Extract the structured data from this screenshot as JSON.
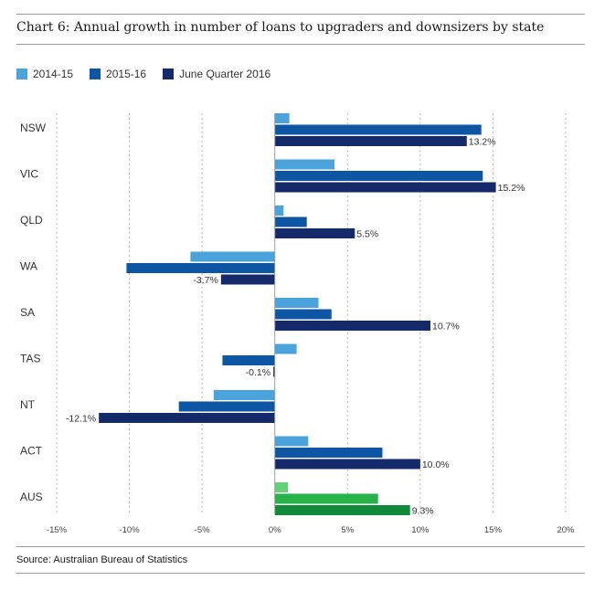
{
  "title": "Chart 6: Annual growth in number of loans to upgraders and downsizers by state",
  "source": "Source: Australian Bureau of Statistics",
  "chart_data": {
    "type": "bar",
    "orientation": "horizontal",
    "title": "Chart 6: Annual growth in number of loans to upgraders and downsizers by state",
    "categories": [
      "NSW",
      "VIC",
      "QLD",
      "WA",
      "SA",
      "TAS",
      "NT",
      "ACT",
      "AUS"
    ],
    "series": [
      {
        "name": "2014-15",
        "color": "#4ba3dc",
        "values": [
          1.0,
          4.1,
          0.6,
          -5.8,
          3.0,
          1.5,
          -4.2,
          2.3,
          0.9
        ]
      },
      {
        "name": "2015-16",
        "color": "#0c56a4",
        "values": [
          14.2,
          14.3,
          2.2,
          -10.2,
          3.9,
          -3.6,
          -6.6,
          7.4,
          7.1
        ]
      },
      {
        "name": "June Quarter 2016",
        "color": "#152a6b",
        "values": [
          13.2,
          15.2,
          5.5,
          -3.7,
          10.7,
          -0.1,
          -12.1,
          10.0,
          9.3
        ]
      }
    ],
    "aus_colors": [
      "#5fd27a",
      "#27b24a",
      "#108a38"
    ],
    "data_labels": [
      "13.2%",
      "15.2%",
      "5.5%",
      "-3.7%",
      "10.7%",
      "-0.1%",
      "-12.1%",
      "10.0%",
      "9.3%"
    ],
    "xlim": [
      -15,
      20
    ],
    "x_ticks": [
      -15,
      -10,
      -5,
      0,
      5,
      10,
      15,
      20
    ],
    "x_tick_labels": [
      "-15%",
      "-10%",
      "-5%",
      "0%",
      "5%",
      "10%",
      "15%",
      "20%"
    ],
    "grid": "vertical dashed",
    "legend_position": "top-left"
  }
}
